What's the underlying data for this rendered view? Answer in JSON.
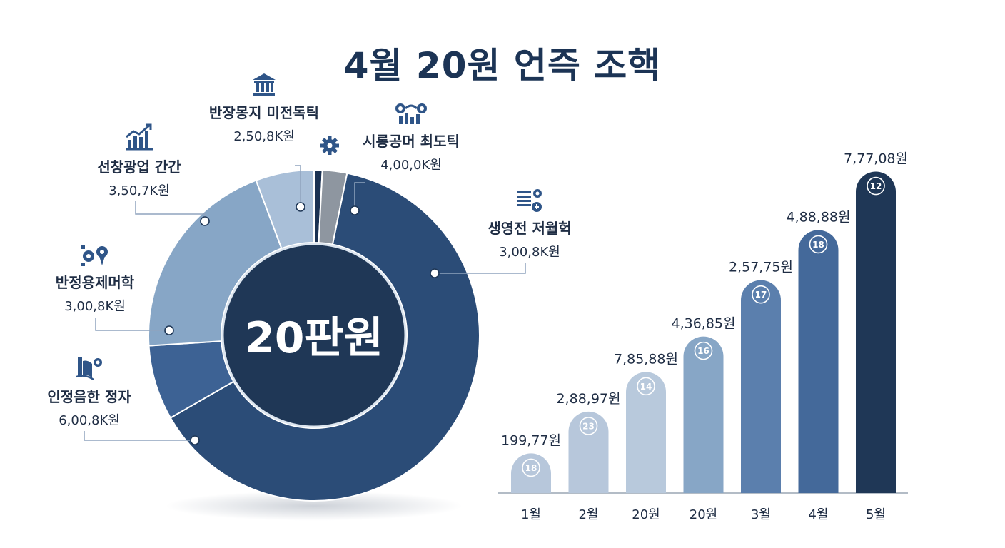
{
  "title": "4월 20원 언즉 조핵",
  "donut": {
    "center_label": "20판원",
    "colors": {
      "dark": "#1a3152",
      "main": "#2b4c77",
      "mid": "#3d6294",
      "light": "#87a6c6",
      "pale": "#a9bfd8",
      "grey": "#8e96a0",
      "center": "#1f3756"
    }
  },
  "labels": [
    {
      "name": "반장몽지 미전독틱",
      "value": "2,50,8K원",
      "icon": "bank-icon"
    },
    {
      "name": "시롱공머 최도틱",
      "value": "4,00,0K원",
      "icon": "settings-chain-icon"
    },
    {
      "name": "선창광업 간간",
      "value": "3,50,7K원",
      "icon": "growth-chart-icon"
    },
    {
      "name": "생영전 저월헉",
      "value": "3,00,8K원",
      "icon": "document-gear-icon"
    },
    {
      "name": "반정용제머학",
      "value": "3,00,8K원",
      "icon": "gear-pin-icon"
    },
    {
      "name": "인정음한 정자",
      "value": "6,00,8K원",
      "icon": "book-gear-icon"
    }
  ],
  "gear_icon": "gear-icon",
  "chart_data": [
    {
      "type": "pie",
      "title": "4월 20원 언즉 조핵",
      "center_label": "20판원",
      "slices": [
        {
          "label": "반장몽지 미전독틱",
          "value_label": "2,50,8K원",
          "share": 0.008
        },
        {
          "label": "시롱공머 최도틱",
          "value_label": "4,00,0K원",
          "share": 0.024
        },
        {
          "label": "생영전 저월헉",
          "value_label": "3,00,8K원",
          "share": 0.635
        },
        {
          "label": "반정용제머학",
          "value_label": "3,00,8K원",
          "share": 0.073
        },
        {
          "label": "선창광업 간간",
          "value_label": "3,50,7K원",
          "share": 0.203
        }
      ]
    },
    {
      "type": "bar",
      "categories": [
        "1월",
        "2월",
        "20원",
        "20원",
        "3월",
        "4월",
        "5월"
      ],
      "values": [
        0.19,
        0.39,
        0.58,
        0.75,
        1.02,
        1.26,
        1.54
      ],
      "value_labels": [
        "199,77원",
        "2,88,97원",
        "7,85,88원",
        "4,36,85원",
        "2,57,75원",
        "4,88,88원",
        "7,77,08원"
      ],
      "badges": [
        "18",
        "23",
        "14",
        "16",
        "17",
        "18",
        "12"
      ],
      "colors": [
        "#b7c7db",
        "#b7c7db",
        "#b8c9dc",
        "#87a6c6",
        "#5b7fad",
        "#44699a",
        "#1f3756"
      ],
      "ylim": [
        0,
        1.6
      ]
    }
  ]
}
